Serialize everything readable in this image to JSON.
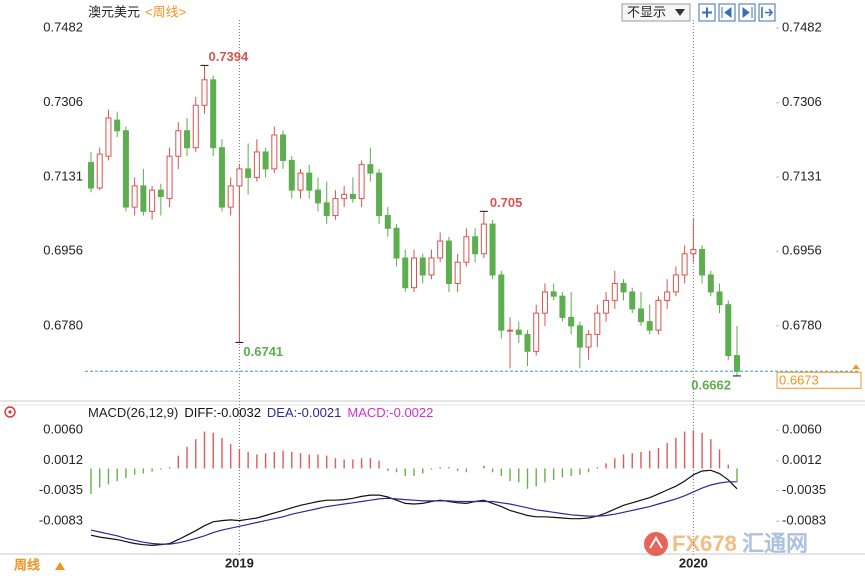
{
  "chart_data": [
    {
      "type": "candlestick",
      "title": "澳元美元",
      "subtitle": "<周线>",
      "categories": [
        null,
        null,
        null,
        null,
        null,
        null,
        null,
        null,
        null,
        null,
        null,
        null,
        null,
        null,
        null,
        null,
        null,
        "2019",
        null,
        null,
        null,
        null,
        null,
        null,
        null,
        null,
        null,
        null,
        null,
        null,
        null,
        null,
        null,
        null,
        null,
        null,
        null,
        null,
        null,
        null,
        null,
        null,
        null,
        null,
        null,
        null,
        null,
        null,
        null,
        null,
        null,
        null,
        null,
        null,
        null,
        null,
        null,
        null,
        null,
        null,
        null,
        null,
        null,
        null,
        null,
        null,
        null,
        null,
        null,
        "2020",
        null,
        null,
        null,
        null,
        null
      ],
      "open": [
        0.7165,
        0.7105,
        0.718,
        0.7265,
        0.724,
        0.706,
        0.711,
        0.705,
        0.71,
        0.708,
        0.718,
        0.724,
        0.72,
        0.73,
        0.736,
        0.72,
        0.706,
        0.711,
        0.715,
        0.713,
        0.719,
        0.715,
        0.723,
        0.717,
        0.71,
        0.714,
        0.71,
        0.707,
        0.704,
        0.708,
        0.709,
        0.708,
        0.716,
        0.714,
        0.704,
        0.701,
        0.694,
        0.687,
        0.694,
        0.69,
        0.694,
        0.698,
        0.688,
        0.693,
        0.699,
        0.695,
        0.702,
        0.69,
        0.677,
        0.677,
        0.676,
        0.672,
        0.681,
        0.686,
        0.685,
        0.68,
        0.678,
        0.673,
        0.676,
        0.681,
        0.684,
        0.688,
        0.686,
        0.682,
        0.679,
        0.677,
        0.684,
        0.686,
        0.69,
        0.695,
        0.696,
        0.69,
        0.686,
        0.683,
        0.671
      ],
      "high": [
        0.719,
        0.72,
        0.729,
        0.7285,
        0.725,
        0.713,
        0.715,
        0.711,
        0.7115,
        0.72,
        0.726,
        0.727,
        0.732,
        0.7394,
        0.737,
        0.722,
        0.713,
        0.716,
        0.721,
        0.722,
        0.72,
        0.725,
        0.724,
        0.718,
        0.715,
        0.716,
        0.713,
        0.712,
        0.71,
        0.711,
        0.713,
        0.717,
        0.72,
        0.715,
        0.706,
        0.702,
        0.696,
        0.696,
        0.695,
        0.696,
        0.7,
        0.699,
        0.695,
        0.701,
        0.701,
        0.705,
        0.703,
        0.691,
        0.68,
        0.679,
        0.677,
        0.683,
        0.688,
        0.688,
        0.686,
        0.686,
        0.679,
        0.677,
        0.683,
        0.686,
        0.691,
        0.689,
        0.687,
        0.686,
        0.683,
        0.685,
        0.689,
        0.692,
        0.697,
        0.7032,
        0.697,
        0.691,
        0.688,
        0.684,
        0.678
      ],
      "low": [
        0.7095,
        0.71,
        0.717,
        0.7225,
        0.705,
        0.704,
        0.704,
        0.703,
        0.704,
        0.706,
        0.715,
        0.718,
        0.719,
        0.728,
        0.718,
        0.705,
        0.704,
        0.6741,
        0.709,
        0.712,
        0.713,
        0.714,
        0.715,
        0.708,
        0.708,
        0.708,
        0.705,
        0.702,
        0.703,
        0.706,
        0.707,
        0.706,
        0.712,
        0.702,
        0.699,
        0.692,
        0.686,
        0.686,
        0.688,
        0.689,
        0.693,
        0.686,
        0.686,
        0.692,
        0.693,
        0.694,
        0.689,
        0.675,
        0.668,
        0.674,
        0.6685,
        0.671,
        0.678,
        0.684,
        0.679,
        0.676,
        0.668,
        0.67,
        0.673,
        0.679,
        0.682,
        0.684,
        0.681,
        0.678,
        0.676,
        0.676,
        0.682,
        0.685,
        0.688,
        0.693,
        0.688,
        0.685,
        0.681,
        0.67,
        0.6662
      ],
      "close": [
        0.7105,
        0.7185,
        0.727,
        0.724,
        0.706,
        0.711,
        0.705,
        0.71,
        0.7085,
        0.718,
        0.724,
        0.72,
        0.73,
        0.736,
        0.72,
        0.706,
        0.711,
        0.715,
        0.713,
        0.719,
        0.715,
        0.723,
        0.717,
        0.71,
        0.714,
        0.71,
        0.707,
        0.704,
        0.708,
        0.709,
        0.708,
        0.716,
        0.714,
        0.704,
        0.701,
        0.694,
        0.687,
        0.694,
        0.69,
        0.694,
        0.698,
        0.688,
        0.693,
        0.699,
        0.695,
        0.702,
        0.69,
        0.677,
        0.677,
        0.676,
        0.672,
        0.681,
        0.686,
        0.685,
        0.68,
        0.678,
        0.673,
        0.676,
        0.681,
        0.684,
        0.688,
        0.686,
        0.682,
        0.679,
        0.677,
        0.684,
        0.686,
        0.69,
        0.695,
        0.696,
        0.69,
        0.686,
        0.683,
        0.671,
        0.6673
      ],
      "up_color": "#d9534f",
      "down_color": "#5cae4f",
      "ylim": [
        0.661,
        0.7501
      ],
      "yticks": [
        0.7482,
        0.7306,
        0.7131,
        0.6956,
        {
          "value": 0.678,
          "label": "0.6780"
        }
      ],
      "last_price_color": "#f29322"
    },
    {
      "type": "macd",
      "title": "MACD(26,12,9)",
      "series": [
        {
          "name": "DIFF",
          "color": "#111111",
          "values": [
            -0.0105,
            -0.0108,
            -0.011,
            -0.0112,
            -0.0115,
            -0.0118,
            -0.012,
            -0.0121,
            -0.012,
            -0.0118,
            -0.0112,
            -0.0105,
            -0.0098,
            -0.009,
            -0.0084,
            -0.0082,
            -0.0081,
            -0.0082,
            -0.008,
            -0.0078,
            -0.0074,
            -0.007,
            -0.0066,
            -0.0062,
            -0.0058,
            -0.0055,
            -0.0052,
            -0.005,
            -0.005,
            -0.0049,
            -0.0047,
            -0.0044,
            -0.0042,
            -0.0042,
            -0.0045,
            -0.005,
            -0.0055,
            -0.0056,
            -0.0055,
            -0.0052,
            -0.005,
            -0.0052,
            -0.0054,
            -0.0055,
            -0.0052,
            -0.005,
            -0.0055,
            -0.006,
            -0.0066,
            -0.007,
            -0.0074,
            -0.0076,
            -0.0076,
            -0.0077,
            -0.0078,
            -0.0079,
            -0.0079,
            -0.0078,
            -0.0075,
            -0.007,
            -0.0064,
            -0.0058,
            -0.0054,
            -0.005,
            -0.0046,
            -0.004,
            -0.0034,
            -0.0028,
            -0.002,
            -0.001,
            -0.0004,
            -0.0003,
            -0.0008,
            -0.0018,
            -0.0032
          ]
        },
        {
          "name": "DEA",
          "color": "#2a2a9a",
          "values": [
            -0.0097,
            -0.01,
            -0.0103,
            -0.0106,
            -0.011,
            -0.0113,
            -0.0116,
            -0.0118,
            -0.0119,
            -0.0119,
            -0.0117,
            -0.0114,
            -0.011,
            -0.0106,
            -0.0101,
            -0.0097,
            -0.0094,
            -0.0091,
            -0.0088,
            -0.0085,
            -0.0082,
            -0.0079,
            -0.0076,
            -0.0072,
            -0.0069,
            -0.0066,
            -0.0063,
            -0.006,
            -0.0058,
            -0.0056,
            -0.0054,
            -0.0052,
            -0.005,
            -0.0048,
            -0.0047,
            -0.0048,
            -0.0049,
            -0.005,
            -0.0051,
            -0.0051,
            -0.0051,
            -0.0051,
            -0.0052,
            -0.0052,
            -0.0052,
            -0.0052,
            -0.0052,
            -0.0054,
            -0.0056,
            -0.0059,
            -0.0062,
            -0.0065,
            -0.0067,
            -0.0069,
            -0.0071,
            -0.0073,
            -0.0074,
            -0.0075,
            -0.0075,
            -0.0074,
            -0.0072,
            -0.0069,
            -0.0066,
            -0.0063,
            -0.006,
            -0.0056,
            -0.0052,
            -0.0048,
            -0.0043,
            -0.0037,
            -0.0031,
            -0.0026,
            -0.0023,
            -0.0021,
            -0.0021
          ]
        },
        {
          "name": "MACD",
          "color": "#d62bd6",
          "up_color": "#e05a5a",
          "down_color": "#6ab04c",
          "values": [
            -0.004,
            -0.003,
            -0.0025,
            -0.002,
            -0.0015,
            -0.001,
            -0.0008,
            -0.0005,
            -0.0002,
            0.0002,
            0.002,
            0.0034,
            0.0046,
            0.0058,
            0.0056,
            0.0048,
            0.0038,
            0.003,
            0.0026,
            0.0022,
            0.0024,
            0.0026,
            0.0028,
            0.0026,
            0.0024,
            0.0022,
            0.0022,
            0.002,
            0.0016,
            0.0014,
            0.0014,
            0.0016,
            0.0016,
            0.0012,
            -0.0004,
            -0.0006,
            -0.0012,
            -0.0012,
            -0.0008,
            -0.0002,
            0.0002,
            0.0002,
            -0.0004,
            -0.0006,
            0,
            0.0004,
            -0.0006,
            -0.0012,
            -0.002,
            -0.0022,
            -0.0032,
            -0.0028,
            -0.0022,
            -0.0018,
            -0.0014,
            -0.0012,
            -0.001,
            -0.0006,
            0.0002,
            0.0008,
            0.0016,
            0.0022,
            0.0024,
            0.0026,
            0.0028,
            0.0032,
            0.004,
            0.0048,
            0.0058,
            0.006,
            0.0056,
            0.0046,
            0.003,
            0.0006,
            -0.0022
          ]
        }
      ],
      "ylim": [
        -0.0133,
        0.0095
      ],
      "yticks": [
        {
          "value": 0.006,
          "label": "0.0060"
        },
        0.0012,
        -0.0035,
        -0.0083
      ]
    }
  ],
  "ui": {
    "dropdown": "不显示",
    "period_button": "周线",
    "watermark_brand": "FX678",
    "watermark_name": "汇通网"
  }
}
